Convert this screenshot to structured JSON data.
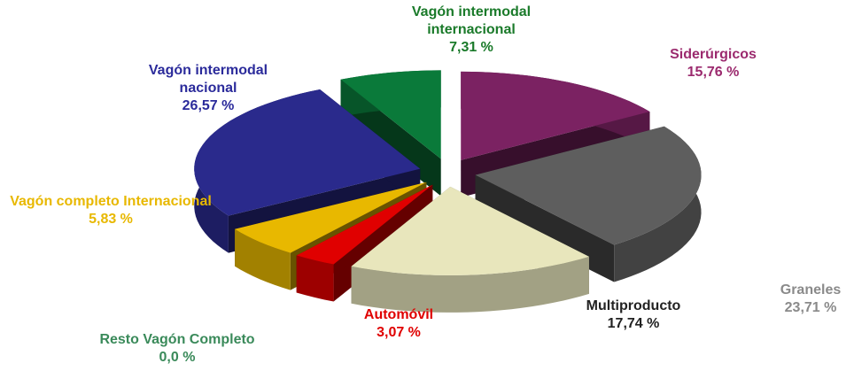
{
  "chart_data": {
    "type": "pie3d",
    "categories": [
      "Siderúrgicos",
      "Graneles",
      "Multiproducto",
      "Automóvil",
      "Resto Vagón Completo",
      "Vagón completo  Internacional",
      "Vagón intermodal nacional",
      "Vagón intermodal internacional"
    ],
    "values": [
      15.76,
      23.71,
      17.74,
      3.07,
      0.0,
      5.83,
      26.57,
      7.31
    ],
    "value_labels": [
      "15,76 %",
      "23,71 %",
      "17,74 %",
      "3,07 %",
      "0,0 %",
      "5,83 %",
      "26,57 %",
      "7,31 %"
    ],
    "colors": [
      "#7b2262",
      "#5e5e5e",
      "#e8e6bc",
      "#e00000",
      "#2e8b57",
      "#e8b800",
      "#2a2a8c",
      "#0a7a3a"
    ],
    "label_colors": [
      "#9b2a6e",
      "#8a8a8a",
      "#222222",
      "#e00000",
      "#3a8a5a",
      "#e8b800",
      "#2b2b9b",
      "#1a7a2a"
    ]
  }
}
